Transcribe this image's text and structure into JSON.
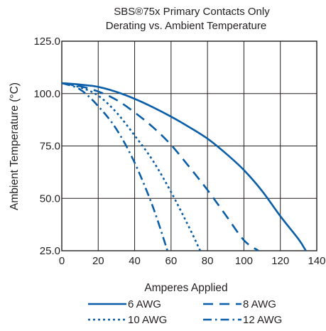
{
  "chart_data": {
    "type": "line",
    "title_line1": "SBS®75x Primary Contacts Only",
    "title_line2": "Derating vs. Ambient Temperature",
    "xlabel": "Amperes Applied",
    "ylabel": "Ambient Temperature (°C)",
    "xlim": [
      0,
      140
    ],
    "ylim": [
      25,
      125
    ],
    "x_ticks": [
      "0",
      "20",
      "40",
      "60",
      "80",
      "100",
      "120",
      "140"
    ],
    "y_ticks": [
      "25.0",
      "50.0",
      "75.0",
      "100.0",
      "125.0"
    ],
    "grid": true,
    "legend_position": "bottom",
    "color": "#0a5ea8",
    "series": [
      {
        "name": "6 AWG",
        "style": "solid",
        "x": [
          0,
          10,
          20,
          30,
          40,
          50,
          60,
          70,
          80,
          90,
          100,
          110,
          120,
          130,
          134
        ],
        "y": [
          105,
          104.3,
          103.2,
          100.8,
          97.5,
          93.5,
          89,
          84,
          78.5,
          71.5,
          63.5,
          53.5,
          41.5,
          30.5,
          25
        ]
      },
      {
        "name": "8 AWG",
        "style": "dash",
        "x": [
          0,
          10,
          20,
          30,
          40,
          50,
          60,
          70,
          80,
          90,
          100,
          108
        ],
        "y": [
          105,
          103.5,
          101,
          97,
          91,
          84,
          75.5,
          65,
          54,
          42,
          30,
          25
        ]
      },
      {
        "name": "10 AWG",
        "style": "dot",
        "x": [
          0,
          10,
          20,
          30,
          40,
          50,
          60,
          70,
          76
        ],
        "y": [
          105,
          103,
          99,
          91,
          80,
          68,
          53,
          36,
          25
        ]
      },
      {
        "name": "12 AWG",
        "style": "dashdot",
        "x": [
          0,
          10,
          20,
          30,
          40,
          50,
          58
        ],
        "y": [
          105,
          102,
          94,
          83,
          67,
          46,
          25
        ]
      }
    ]
  }
}
